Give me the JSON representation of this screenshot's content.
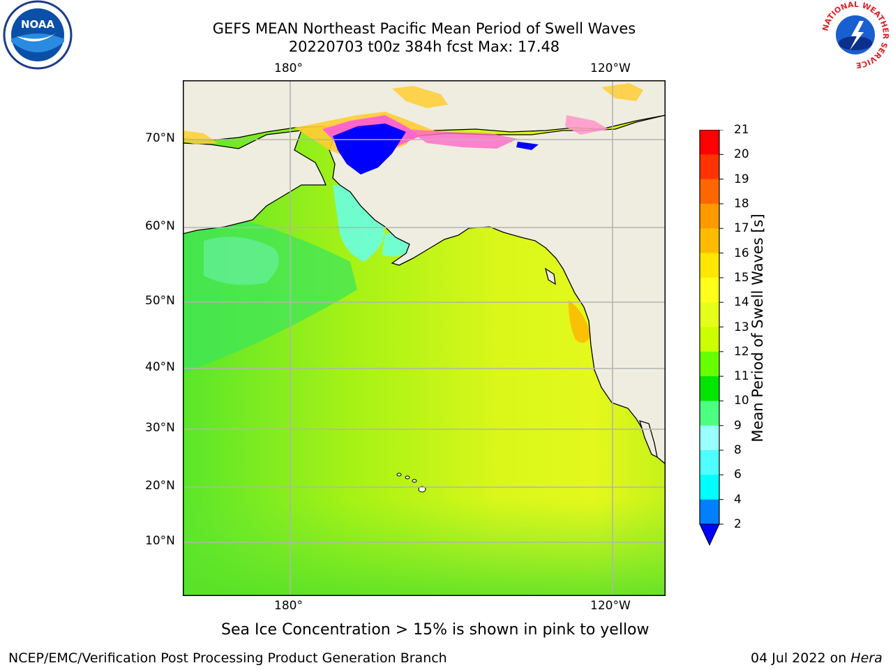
{
  "title": {
    "line1": "GEFS MEAN Northeast Pacific Mean Period of Swell Waves",
    "line2": "20220703 t00z 384h fcst   Max: 17.48"
  },
  "logos": {
    "left": {
      "icon": "noaa-logo-icon",
      "text": "NOAA"
    },
    "right": {
      "icon": "nws-logo-icon",
      "text": "NATIONAL WEATHER SERVICE"
    }
  },
  "map": {
    "lon_labels_top": [
      "180°",
      "120°W"
    ],
    "lon_labels_bottom": [
      "180°",
      "120°W"
    ],
    "lat_labels": [
      "70°N",
      "60°N",
      "50°N",
      "40°N",
      "30°N",
      "20°N",
      "10°N"
    ],
    "colors": {
      "land": "#efeddf",
      "coast": "#000000",
      "grid": "#b3b3b3",
      "sea_ice_blue": "#0000ff",
      "sea_ice_pink": "#ff66cc",
      "sea_ice_yellow": "#ffcc33"
    }
  },
  "colorbar": {
    "label": "Mean Period of Swell Waves [s]",
    "ticks": [
      "21",
      "20",
      "19",
      "18",
      "17",
      "16",
      "15",
      "14",
      "13",
      "12",
      "11",
      "10",
      "9",
      "8",
      "6",
      "4",
      "2"
    ],
    "colors": [
      "#ff0000",
      "#ff3300",
      "#ff6600",
      "#ff9900",
      "#ffbb00",
      "#ffe600",
      "#ffff1a",
      "#e6ff1a",
      "#ccff00",
      "#66ff00",
      "#00e600",
      "#4dff80",
      "#99ffff",
      "#4dffff",
      "#00ffff",
      "#0080ff",
      "#0000ff"
    ]
  },
  "note": "Sea Ice Concentration > 15% is shown in pink to yellow",
  "footer": {
    "left": "NCEP/EMC/Verification Post Processing Product Generation Branch",
    "right_date": "04 Jul 2022 on ",
    "right_host": "Hera"
  }
}
